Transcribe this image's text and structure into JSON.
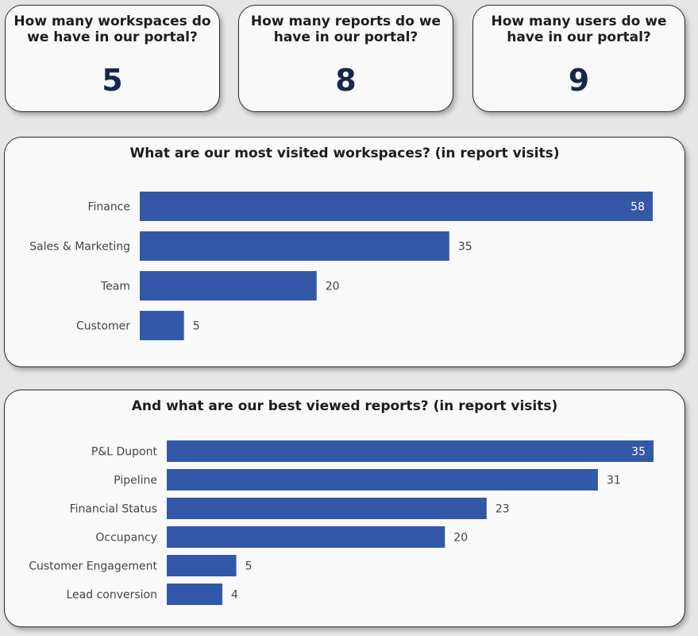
{
  "kpis": [
    {
      "question_line1": "How many workspaces do",
      "question_line2": "we have in our portal?",
      "value": "5"
    },
    {
      "question_line1": "How many reports do we",
      "question_line2": "have in our portal?",
      "value": "8"
    },
    {
      "question_line1": "How many users do we",
      "question_line2": "have in our portal?",
      "value": "9"
    }
  ],
  "chart_data": [
    {
      "type": "bar",
      "orientation": "horizontal",
      "title": "What are our most visited workspaces? (in report visits)",
      "categories": [
        "Finance",
        "Sales & Marketing",
        "Team",
        "Customer"
      ],
      "values": [
        58,
        35,
        20,
        5
      ],
      "bar_color": "#3358a8",
      "xlim": [
        0,
        58
      ],
      "grid": false
    },
    {
      "type": "bar",
      "orientation": "horizontal",
      "title": "And what are our best viewed reports? (in report visits)",
      "categories": [
        "P&L Dupont",
        "Pipeline",
        "Financial Status",
        "Occupancy",
        "Customer Engagement",
        "Lead conversion"
      ],
      "values": [
        35,
        31,
        23,
        20,
        5,
        4
      ],
      "bar_color": "#3358a8",
      "xlim": [
        0,
        35
      ],
      "grid": false
    }
  ],
  "colors": {
    "bar": "#3358a8",
    "kpi_value": "#16274a",
    "card_bg": "#f9f9fa",
    "page_bg": "#e6e6e6"
  }
}
